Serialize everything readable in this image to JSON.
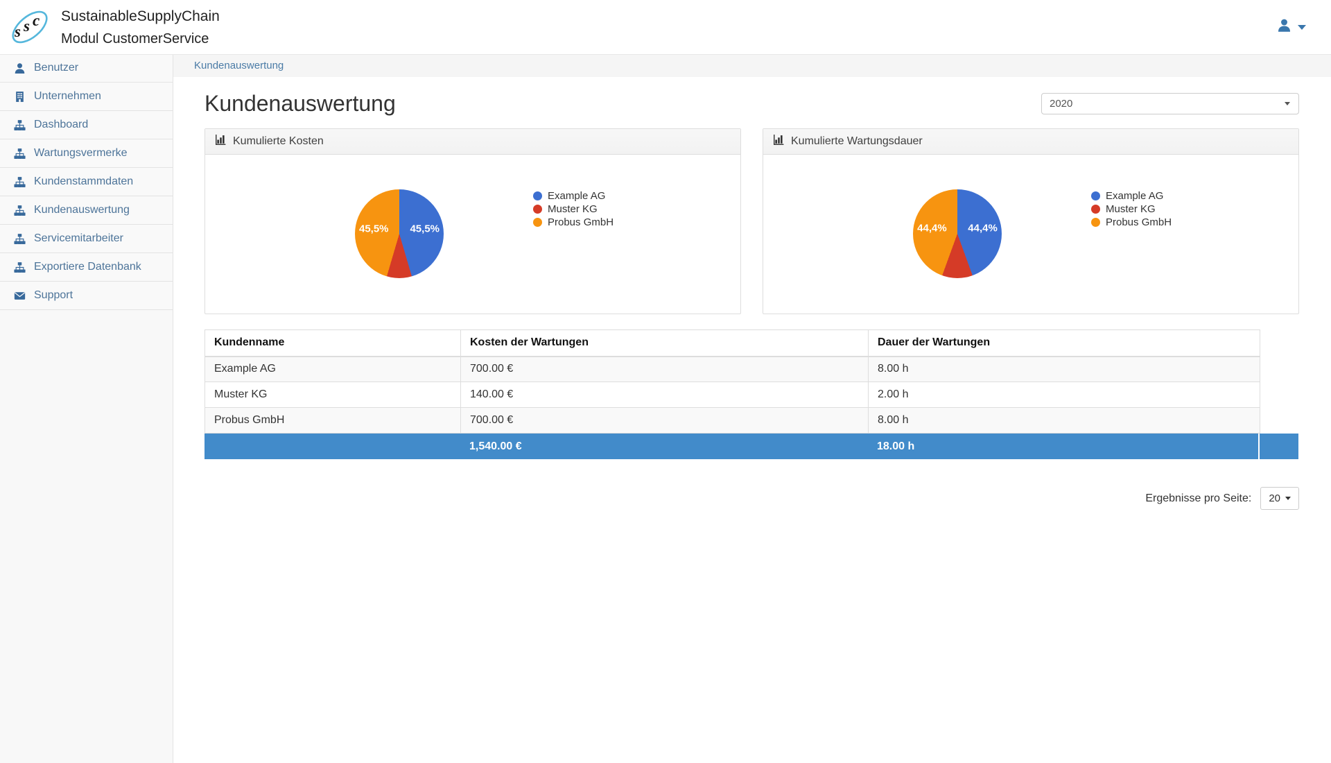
{
  "navbar": {
    "logo_text": "ssc",
    "brand_line1": "SustainableSupplyChain",
    "brand_line2": "Modul CustomerService"
  },
  "sidebar": {
    "items": [
      {
        "label": "Benutzer",
        "icon": "user"
      },
      {
        "label": "Unternehmen",
        "icon": "building"
      },
      {
        "label": "Dashboard",
        "icon": "sitemap"
      },
      {
        "label": "Wartungsvermerke",
        "icon": "sitemap"
      },
      {
        "label": "Kundenstammdaten",
        "icon": "sitemap"
      },
      {
        "label": "Kundenauswertung",
        "icon": "sitemap"
      },
      {
        "label": "Servicemitarbeiter",
        "icon": "sitemap"
      },
      {
        "label": "Exportiere Datenbank",
        "icon": "sitemap"
      },
      {
        "label": "Support",
        "icon": "envelope"
      }
    ]
  },
  "breadcrumb": {
    "label": "Kundenauswertung"
  },
  "page": {
    "title": "Kundenauswertung"
  },
  "year_select": {
    "value": "2020"
  },
  "chart_data": [
    {
      "type": "pie",
      "title": "Kumulierte Kosten",
      "categories": [
        "Example AG",
        "Muster KG",
        "Probus GmbH"
      ],
      "values": [
        700.0,
        140.0,
        700.0
      ],
      "unit": "EUR",
      "percent_labels": [
        "45,5%",
        "",
        "45,5%"
      ],
      "colors": [
        "#3c6fd1",
        "#d53b27",
        "#f79410"
      ],
      "legend_position": "right"
    },
    {
      "type": "pie",
      "title": "Kumulierte Wartungsdauer",
      "categories": [
        "Example AG",
        "Muster KG",
        "Probus GmbH"
      ],
      "values": [
        8.0,
        2.0,
        8.0
      ],
      "unit": "h",
      "percent_labels": [
        "44,4%",
        "",
        "44,4%"
      ],
      "colors": [
        "#3c6fd1",
        "#d53b27",
        "#f79410"
      ],
      "legend_position": "right"
    }
  ],
  "table": {
    "columns": [
      "Kundenname",
      "Kosten der Wartungen",
      "Dauer der Wartungen"
    ],
    "rows": [
      [
        "Example AG",
        "700.00 €",
        "8.00 h"
      ],
      [
        "Muster KG",
        "140.00 €",
        "2.00 h"
      ],
      [
        "Probus GmbH",
        "700.00 €",
        "8.00 h"
      ]
    ],
    "footer": [
      "",
      "1,540.00 €",
      "18.00 h"
    ],
    "footer_color": "#428bca"
  },
  "pagination": {
    "label": "Ergebnisse pro Seite:",
    "value": "20"
  }
}
